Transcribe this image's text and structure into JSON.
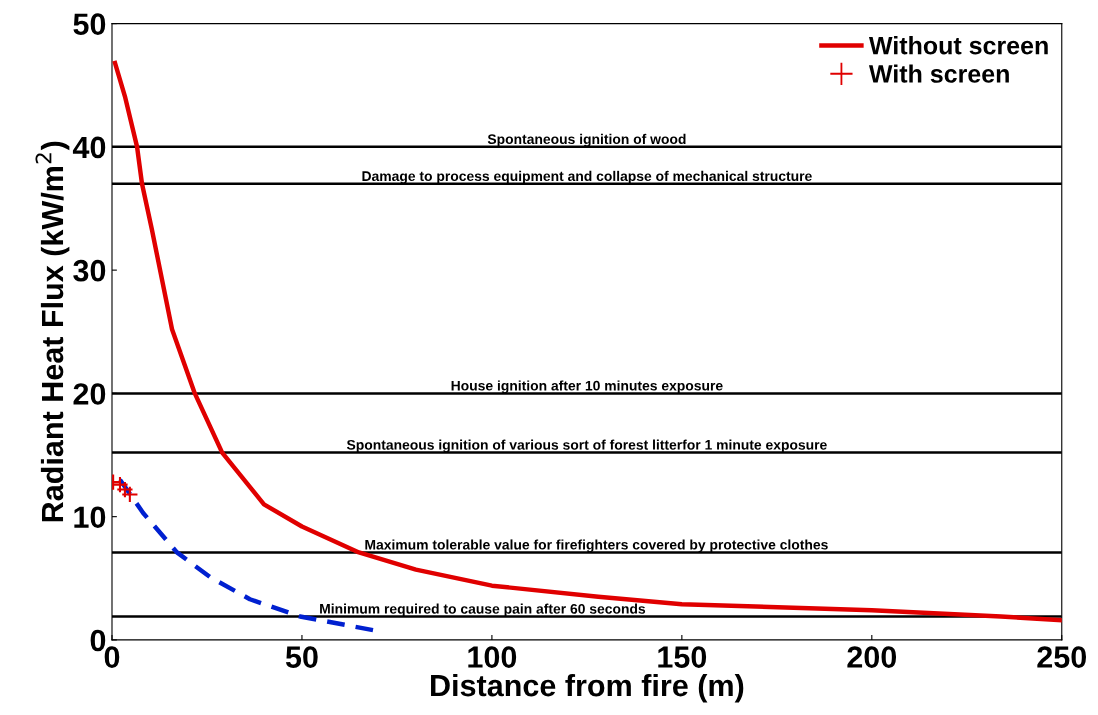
{
  "chart_data": {
    "type": "line",
    "xlabel": "Distance from fire (m)",
    "ylabel": "Radiant Heat Flux (kW/m$^{2}$)",
    "xlim": [
      0,
      250
    ],
    "xticks": [
      0,
      50,
      100,
      150,
      200,
      250
    ],
    "ylim": [
      0,
      50
    ],
    "yticks": [
      0,
      10,
      20,
      30,
      40,
      50
    ],
    "grid": false,
    "legend": "top right",
    "series": [
      {
        "name": "Without screen",
        "color": "#e00000",
        "line_style": "solid",
        "x": [
          0.8,
          3.4,
          6.6,
          7.9,
          10.5,
          15.8,
          21.8,
          29,
          40,
          50,
          65,
          80,
          100,
          128,
          150,
          200,
          234,
          250
        ],
        "values": [
          46.8,
          44.1,
          40,
          37,
          33.3,
          25.2,
          20,
          15.2,
          11,
          9.2,
          7.1,
          5.7,
          4.4,
          3.5,
          2.9,
          2.4,
          1.9,
          1.6
        ]
      },
      {
        "name": "With screen",
        "color": "#e00000",
        "type": "scatter",
        "marker": "cross",
        "x": [
          0.3,
          2.1,
          3.4,
          4.7
        ],
        "values": [
          12.8,
          12.6,
          12.2,
          11.8
        ]
      },
      {
        "color": "#0020d0",
        "line_style": "dashed",
        "x": [
          2.1,
          8.2,
          17.1,
          25.8,
          36.3,
          49.5,
          68.7
        ],
        "values": [
          13,
          10.3,
          7.1,
          5.1,
          3.3,
          1.9,
          0.8
        ]
      }
    ],
    "ref_lines": [
      {
        "axis": "y",
        "value": 40,
        "label": "Spontaneous ignition of wood",
        "color": "#000000"
      },
      {
        "axis": "y",
        "value": 37,
        "label": "Damage to process equipment and collapse of mechanical structure",
        "color": "#000000"
      },
      {
        "axis": "y",
        "value": 20,
        "label": "House ignition after 10 minutes exposure",
        "color": "#000000"
      },
      {
        "axis": "y",
        "value": 15.2,
        "label": "Spontaneous ignition of various sort of forest litterfor 1 minute exposure",
        "color": "#000000"
      },
      {
        "axis": "y",
        "value": 7.1,
        "label": "Maximum tolerable value for firefighters covered by protective clothes",
        "color": "#000000"
      },
      {
        "axis": "y",
        "value": 1.9,
        "label": "Minimum required to cause pain after 60 seconds",
        "color": "#000000"
      }
    ]
  }
}
